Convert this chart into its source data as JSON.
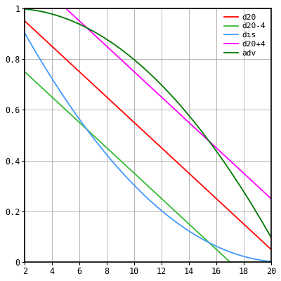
{
  "title": "",
  "xlabel": "",
  "ylabel": "",
  "xlim": [
    2,
    20
  ],
  "ylim": [
    0,
    1
  ],
  "xticks": [
    2,
    4,
    6,
    8,
    10,
    12,
    14,
    16,
    18,
    20
  ],
  "yticks": [
    0,
    0.2,
    0.4,
    0.6,
    0.8,
    1.0
  ],
  "legend": [
    "d20",
    "d20-4",
    "dis",
    "d20+4",
    "adv"
  ],
  "colors": {
    "d20": "#ff0000",
    "d20-4": "#33bb33",
    "dis": "#4499ff",
    "d20+4": "#ff00ff",
    "adv": "#007700"
  },
  "background": "#ffffff",
  "grid_color": "#aaaaaa",
  "figsize": [
    4.0,
    4.0
  ],
  "dpi": 100
}
